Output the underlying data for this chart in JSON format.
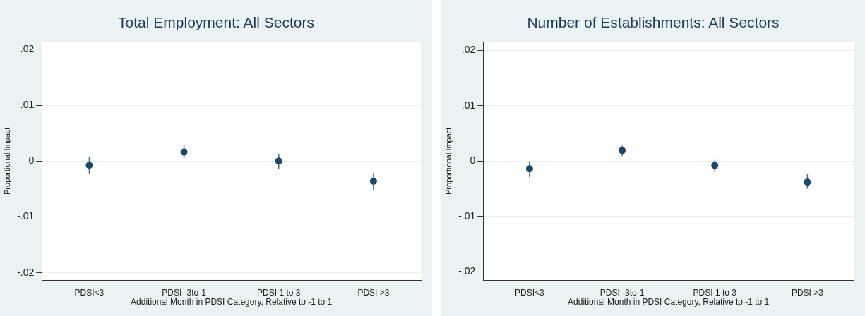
{
  "chart_data": [
    {
      "type": "scatter",
      "title": "Total Employment: All Sectors",
      "xlabel": "Additional Month in PDSI Category, Relative to -1 to 1",
      "ylabel": "Proportional Impact",
      "categories": [
        "PDSI<3",
        "PDSI -3to-1",
        "PDSI 1 to 3",
        "PDSI >3"
      ],
      "series": [
        {
          "color": "#1a476f",
          "values": [
            -0.00075,
            0.0016,
            0.0,
            -0.0036
          ],
          "errors": [
            [
              -0.0022,
              0.0008
            ],
            [
              0.0005,
              0.0029
            ],
            [
              -0.0014,
              0.0012
            ],
            [
              -0.0052,
              -0.0021
            ]
          ]
        }
      ],
      "ylim": [
        -0.0213,
        0.0213
      ],
      "yticks": [
        {
          "value": -0.02,
          "label": "-.02"
        },
        {
          "value": -0.01,
          "label": "-.01"
        },
        0,
        {
          "value": 0.01,
          "label": ".01"
        },
        {
          "value": 0.02,
          "label": ".02"
        }
      ],
      "grid": "y",
      "legend": false,
      "marker": "circle"
    },
    {
      "type": "scatter",
      "title": "Number of Establishments: All Sectors",
      "xlabel": "Additional Month in PDSI Category, Relative to -1 to 1",
      "ylabel": "Proportional Impact",
      "categories": [
        "PDSI<3",
        "PDSI -3to-1",
        "PDSI 1 to 3",
        "PDSI >3"
      ],
      "series": [
        {
          "color": "#1a476f",
          "values": [
            -0.0014,
            0.0019,
            -0.0008,
            -0.0038
          ],
          "errors": [
            [
              -0.0029,
              0.0
            ],
            [
              0.0009,
              0.0028
            ],
            [
              -0.002,
              0.0002
            ],
            [
              -0.005,
              -0.0024
            ]
          ]
        }
      ],
      "ylim": [
        -0.0215,
        0.0215
      ],
      "yticks": [
        {
          "value": -0.02,
          "label": "-.02"
        },
        {
          "value": -0.01,
          "label": "-.01"
        },
        0,
        {
          "value": 0.01,
          "label": ".01"
        },
        {
          "value": 0.02,
          "label": ".02"
        }
      ],
      "grid": "y",
      "legend": false,
      "marker": "circle"
    }
  ]
}
